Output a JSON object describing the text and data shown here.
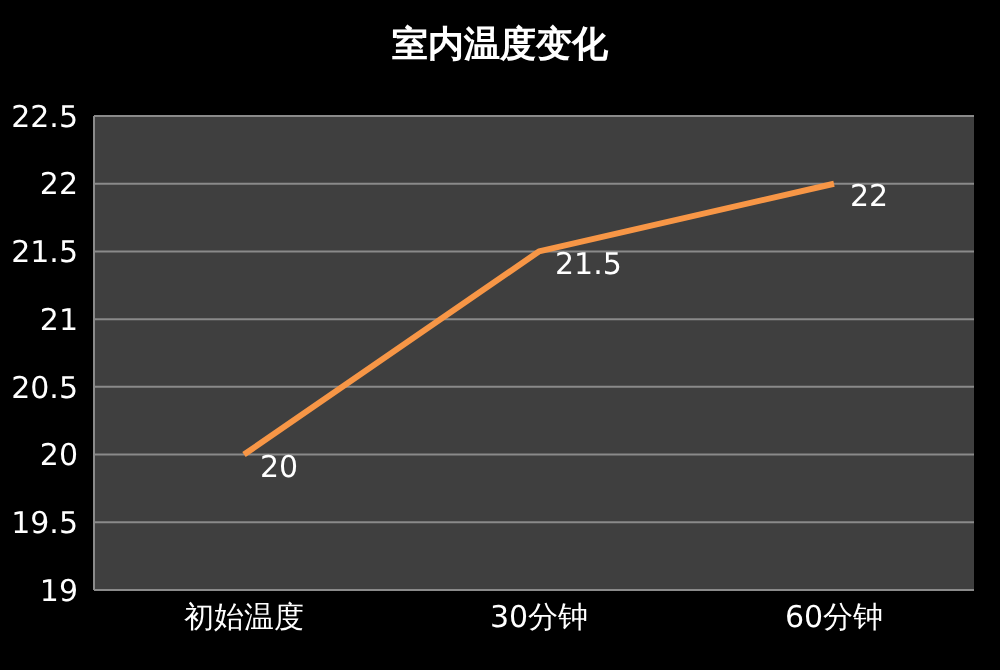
{
  "chart_data": {
    "type": "line",
    "title": "室内温度变化",
    "categories": [
      "初始温度",
      "30分钟",
      "60分钟"
    ],
    "values": [
      20,
      21.5,
      22
    ],
    "color": "#f79646",
    "ylim": [
      19,
      22.5
    ],
    "yticks": [
      19,
      19.5,
      20,
      20.5,
      21,
      21.5,
      22,
      22.5
    ],
    "grid": "y",
    "data_labels": true,
    "marker": "none"
  }
}
